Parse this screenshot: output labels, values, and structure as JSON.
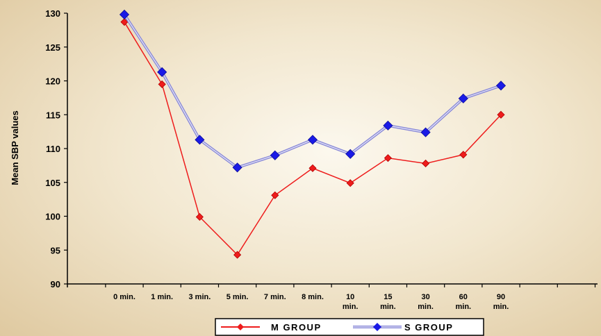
{
  "chart_data": {
    "type": "line",
    "ylabel": "Mean SBP values",
    "xlabel": "",
    "ylim": [
      90,
      130
    ],
    "yticks": [
      90,
      95,
      100,
      105,
      110,
      115,
      120,
      125,
      130
    ],
    "categories": [
      "0 min.",
      "1 min.",
      "3 min.",
      "5 min.",
      "7 min.",
      "8 min.",
      "10 min.",
      "15 min.",
      "30 min.",
      "60 min.",
      "90 min."
    ],
    "series": [
      {
        "name": "M GROUP",
        "color": "#ee1c1c",
        "marker": "diamond",
        "values": [
          128.7,
          119.5,
          99.9,
          94.3,
          103.1,
          107.1,
          104.9,
          108.6,
          107.8,
          109.1,
          115.0
        ]
      },
      {
        "name": "S GROUP",
        "color": "#1a1ae6",
        "marker": "diamond",
        "values": [
          129.8,
          121.3,
          111.3,
          107.2,
          109.0,
          111.3,
          109.2,
          113.4,
          112.4,
          117.4,
          119.3
        ]
      }
    ],
    "legend": "bottom",
    "grid": false
  }
}
